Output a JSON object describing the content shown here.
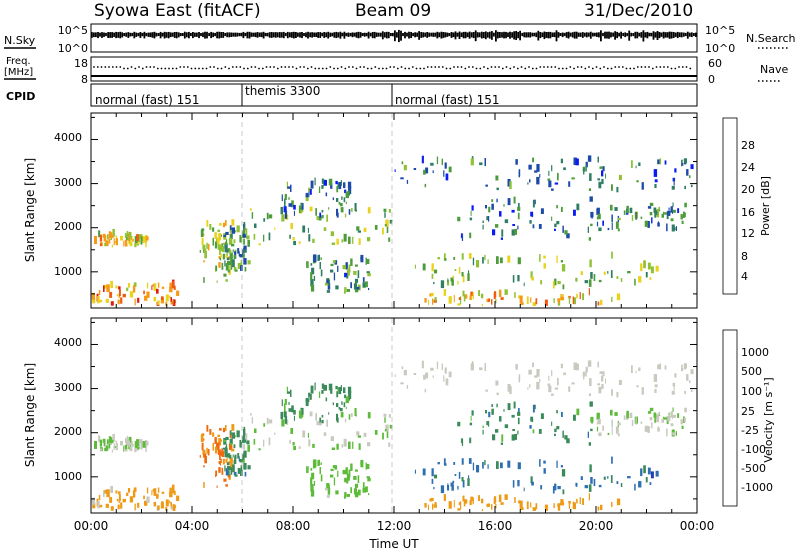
{
  "header": {
    "station": "Syowa East (fitACF)",
    "beam": "Beam 09",
    "date": "31/Dec/2010"
  },
  "top_panels": {
    "nsky_label": "N.Sky",
    "nsky_ticks": [
      "10^5",
      "10^0"
    ],
    "nsearch_label": "N.Search",
    "nsearch_ticks": [
      "10^5",
      "10^0"
    ],
    "freq_label_line1": "Freq.",
    "freq_label_line2": "[MHz]",
    "freq_ticks": [
      "18",
      "8"
    ],
    "nave_label": "Nave",
    "nave_ticks": [
      "60",
      "0"
    ],
    "cpid_label": "CPID",
    "cpid_segments": [
      {
        "label": "normal (fast) 151",
        "start_h": 0,
        "end_h": 6
      },
      {
        "label": "themis 3300",
        "start_h": 6,
        "end_h": 12
      },
      {
        "label": "normal (fast) 151",
        "start_h": 12,
        "end_h": 24
      }
    ]
  },
  "x_axis": {
    "title": "Time UT",
    "tick_labels": [
      "00:00",
      "04:00",
      "08:00",
      "12:00",
      "16:00",
      "20:00",
      "00:00"
    ]
  },
  "y_axis": {
    "title": "Slant Range [km]",
    "tick_labels": [
      "1000",
      "2000",
      "3000",
      "4000"
    ]
  },
  "power_colorbar": {
    "title": "Power [dB]",
    "tick_labels": [
      "4",
      "8",
      "12",
      "16",
      "20",
      "24",
      "28"
    ],
    "colors": [
      "#0a1cf2",
      "#1c4aa8",
      "#2f7d63",
      "#4d9c3b",
      "#8fc136",
      "#e8d21b",
      "#f59a16",
      "#f05a0e",
      "#e21b10"
    ]
  },
  "velocity_colorbar": {
    "title": "Velocity [m s⁻¹]",
    "tick_labels": [
      "1000",
      "500",
      "100",
      "25",
      "-25",
      "-100",
      "-500",
      "-1000"
    ],
    "colors": [
      "#1e3fb5",
      "#2e6fb0",
      "#3b8a5a",
      "#5dbb3a",
      "#c9c9c0",
      "#c9c9c0",
      "#ee9a14",
      "#f06a10",
      "#e82010"
    ]
  },
  "chart_data": {
    "type": "heatmap",
    "panels": [
      "power",
      "velocity"
    ],
    "x": {
      "unit": "hours UT",
      "range": [
        0,
        24
      ]
    },
    "y": {
      "unit": "km",
      "range": [
        180,
        4600
      ]
    },
    "power_range_db": [
      0,
      30
    ],
    "velocity_range_ms": [
      -1000,
      1000
    ],
    "grid": false,
    "scatter_regions": [
      {
        "t0": 0.1,
        "t1": 2.2,
        "r0": 1550,
        "r1": 1800,
        "power": 18,
        "velocity": 10
      },
      {
        "t0": 0.0,
        "t1": 3.5,
        "r0": 220,
        "r1": 700,
        "power": 22,
        "velocity": -180
      },
      {
        "t0": 4.3,
        "t1": 5.6,
        "r0": 700,
        "r1": 2100,
        "power": 16,
        "velocity": -420
      },
      {
        "t0": 5.2,
        "t1": 6.2,
        "r0": 1000,
        "r1": 2000,
        "power": 10,
        "velocity": 200
      },
      {
        "t0": 6.0,
        "t1": 12.0,
        "r0": 1600,
        "r1": 2400,
        "power": 14,
        "velocity": 20
      },
      {
        "t0": 7.5,
        "t1": 10.5,
        "r0": 2200,
        "r1": 3000,
        "power": 8,
        "velocity": 150
      },
      {
        "t0": 8.5,
        "t1": 11.0,
        "r0": 500,
        "r1": 1300,
        "power": 9,
        "velocity": 60
      },
      {
        "t0": 12.0,
        "t1": 24.0,
        "r0": 2800,
        "r1": 3500,
        "power": 8,
        "velocity": -40
      },
      {
        "t0": 12.8,
        "t1": 22.5,
        "r0": 600,
        "r1": 1300,
        "power": 14,
        "velocity": 450
      },
      {
        "t0": 13.0,
        "t1": 21.0,
        "r0": 220,
        "r1": 480,
        "power": 20,
        "velocity": -250
      },
      {
        "t0": 20.0,
        "t1": 23.5,
        "r0": 1900,
        "r1": 2500,
        "power": 8,
        "velocity": 15
      },
      {
        "t0": 14.5,
        "t1": 20.0,
        "r0": 1700,
        "r1": 2600,
        "power": 7,
        "velocity": 200
      }
    ]
  }
}
